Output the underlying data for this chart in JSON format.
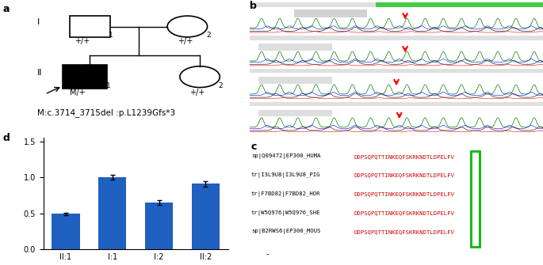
{
  "bar_values": [
    0.49,
    1.0,
    0.65,
    0.91
  ],
  "bar_errors": [
    0.02,
    0.03,
    0.03,
    0.04
  ],
  "bar_labels": [
    "II:1",
    "I:1",
    "I:2",
    "II:2"
  ],
  "bar_color": "#2060c0",
  "ylim": [
    0,
    1.55
  ],
  "yticks": [
    0.0,
    0.5,
    1.0,
    1.5
  ],
  "panel_d_label": "d",
  "panel_a_label": "a",
  "panel_b_label": "b",
  "panel_c_label": "c",
  "pedigree_gen1_label": "I",
  "pedigree_gen2_label": "II",
  "mutation_text": "M:c.3714_3715del :p.L1239Gfs*3",
  "seq_names": [
    "sp|Q09472|EP300_HUMA",
    "tr|I3L9U8|I3L9U8_PIG",
    "tr|F7BD82|F7BD82_HOR",
    "tr|W5Q976|W5Q976_SHE",
    "sp|B2RWS6|EP300_MOUS"
  ],
  "seq_text": "DDPSQPQTTINKEQFSKRKNDTLDPELFV",
  "seq_color": "#cc0000",
  "seq_box_color": "#00bb00",
  "background_color": "#ffffff"
}
